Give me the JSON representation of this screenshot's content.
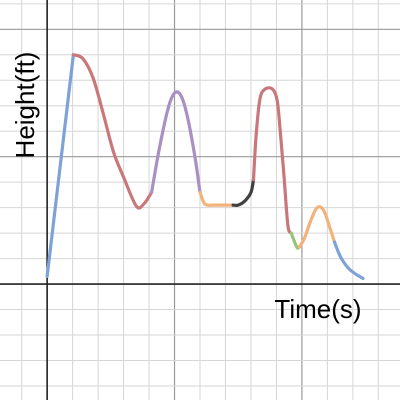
{
  "chart_data": {
    "type": "line",
    "title": "",
    "xlabel": "Time(s)",
    "ylabel": "Height(ft)",
    "grid": true,
    "xlim": [
      -1.85,
      13.85
    ],
    "ylim": [
      -4.55,
      11.15
    ],
    "series": [
      {
        "color": "#7da3d6",
        "points": [
          [
            0.0,
            0.3
          ],
          [
            1.03,
            9.0
          ]
        ]
      },
      {
        "color": "#c9787a",
        "points": [
          [
            1.03,
            9.0
          ],
          [
            1.4,
            8.85
          ],
          [
            1.8,
            8.1
          ],
          [
            2.2,
            6.7
          ],
          [
            2.6,
            5.2
          ],
          [
            3.0,
            4.2
          ],
          [
            3.5,
            3.06
          ],
          [
            3.8,
            3.15
          ],
          [
            4.1,
            3.6
          ]
        ]
      },
      {
        "color": "#a98fc4",
        "points": [
          [
            4.1,
            3.6
          ],
          [
            4.4,
            5.3
          ],
          [
            4.75,
            6.9
          ],
          [
            5.0,
            7.5
          ],
          [
            5.25,
            7.4
          ],
          [
            5.5,
            6.6
          ],
          [
            5.8,
            5.0
          ],
          [
            6.0,
            3.6
          ]
        ]
      },
      {
        "color": "#f2b27a",
        "points": [
          [
            6.0,
            3.6
          ],
          [
            6.15,
            3.2
          ],
          [
            6.3,
            3.1
          ],
          [
            6.6,
            3.1
          ],
          [
            7.0,
            3.1
          ],
          [
            7.3,
            3.1
          ]
        ]
      },
      {
        "color": "#404040",
        "points": [
          [
            7.3,
            3.1
          ],
          [
            7.5,
            3.1
          ],
          [
            7.75,
            3.25
          ],
          [
            8.0,
            3.6
          ],
          [
            8.1,
            4.1
          ]
        ]
      },
      {
        "color": "#c9787a",
        "points": [
          [
            8.1,
            4.1
          ],
          [
            8.2,
            5.8
          ],
          [
            8.35,
            7.25
          ],
          [
            8.55,
            7.65
          ],
          [
            8.85,
            7.65
          ],
          [
            9.03,
            7.2
          ],
          [
            9.15,
            6.0
          ],
          [
            9.3,
            4.2
          ],
          [
            9.45,
            2.3
          ],
          [
            9.58,
            2.0
          ]
        ]
      },
      {
        "color": "#97c47a",
        "points": [
          [
            9.58,
            2.0
          ],
          [
            9.8,
            1.45
          ],
          [
            9.9,
            1.46
          ]
        ]
      },
      {
        "color": "#f2b27a",
        "points": [
          [
            9.9,
            1.46
          ],
          [
            10.1,
            1.8
          ],
          [
            10.35,
            2.5
          ],
          [
            10.6,
            3.0
          ],
          [
            10.85,
            2.9
          ],
          [
            11.1,
            2.2
          ],
          [
            11.28,
            1.65
          ]
        ]
      },
      {
        "color": "#7da3d6",
        "points": [
          [
            11.28,
            1.65
          ],
          [
            11.5,
            1.1
          ],
          [
            11.8,
            0.65
          ],
          [
            12.1,
            0.4
          ],
          [
            12.4,
            0.22
          ]
        ]
      }
    ]
  }
}
